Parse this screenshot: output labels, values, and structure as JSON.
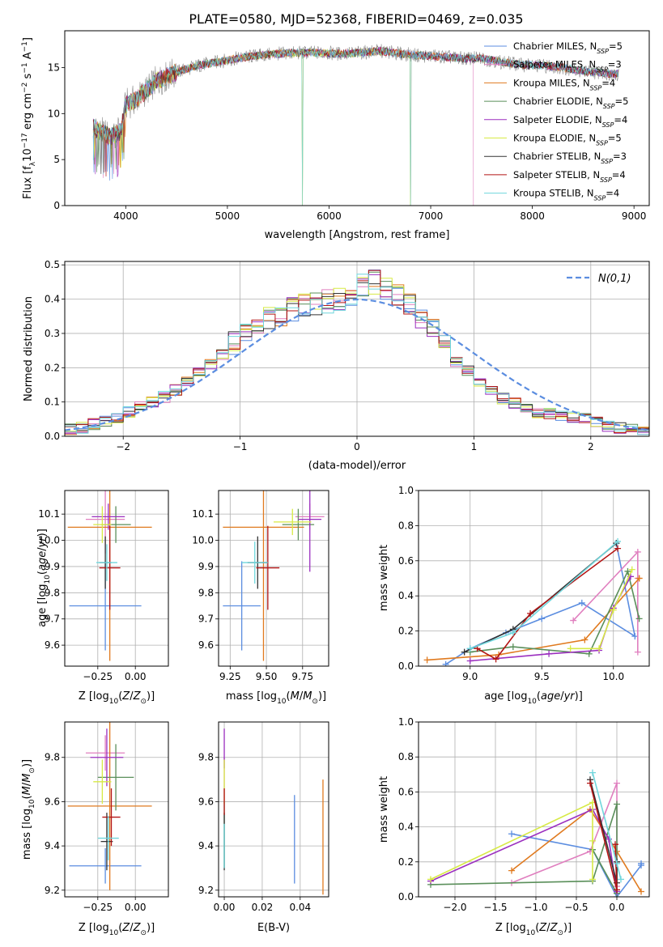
{
  "title": "PLATE=0580, MJD=52368, FIBERID=0469, z=0.035",
  "colors": {
    "Chabrier MILES": "#5b8de0",
    "Salpeter MILES": "#e07fbf",
    "Kroupa MILES": "#e07a1f",
    "Chabrier ELODIE": "#5a8f5a",
    "Salpeter ELODIE": "#9b2fbf",
    "Kroupa ELODIE": "#d7ea45",
    "Chabrier STELIB": "#333333",
    "Salpeter STELIB": "#b31414",
    "Kroupa STELIB": "#6fd6dc",
    "observed": "#808080"
  },
  "chart_data": [
    {
      "id": "spectrum",
      "type": "line",
      "xlabel": "wavelength [Angstrom, rest frame]",
      "ylabel": "Flux [f_λ10^-17 erg cm^-2 s^-1 A^-1]",
      "xlim": [
        3400,
        9150
      ],
      "ylim": [
        0,
        19
      ],
      "xticks": [
        4000,
        5000,
        6000,
        7000,
        8000,
        9000
      ],
      "yticks": [
        0,
        5,
        10,
        15
      ],
      "grid": false,
      "legend": "top-right",
      "legend_entries": [
        "Chabrier MILES, N_SSP=5",
        "Salpeter MILES, N_SSP=3",
        "Kroupa MILES, N_SSP=4",
        "Chabrier ELODIE, N_SSP=5",
        "Salpeter ELODIE, N_SSP=4",
        "Kroupa ELODIE, N_SSP=5",
        "Chabrier STELIB, N_SSP=3",
        "Salpeter STELIB, N_SSP=4",
        "Kroupa STELIB, N_SSP=4"
      ],
      "continuum": {
        "x": [
          3680,
          3750,
          3850,
          3950,
          4000,
          4100,
          4200,
          4300,
          4400,
          4500,
          4700,
          4900,
          5100,
          5300,
          5500,
          5700,
          5900,
          6100,
          6300,
          6500,
          6700,
          6900,
          7100,
          7300,
          7500,
          7700,
          7900,
          8100,
          8300,
          8500,
          8700,
          8850
        ],
        "y": [
          8.5,
          8,
          7.5,
          8,
          11,
          11.5,
          12.5,
          13.5,
          14,
          14.5,
          15.2,
          15.6,
          16,
          16.3,
          16.5,
          16.6,
          16.6,
          16.5,
          16.6,
          16.8,
          16.5,
          16.3,
          16.2,
          16,
          16,
          15.6,
          15.3,
          15.2,
          15,
          14.6,
          14.4,
          14.3
        ]
      },
      "model_cutoffs": {
        "Salpeter MILES": 7420,
        "Kroupa ELODIE": 6800
      },
      "sky_line_drops": [
        5740,
        6800
      ]
    },
    {
      "id": "residuals",
      "type": "histogram",
      "xlabel": "(data-model)/error",
      "ylabel": "Normed distribution",
      "xlim": [
        -2.5,
        2.5
      ],
      "ylim": [
        0,
        0.51
      ],
      "xticks": [
        -2,
        -1,
        0,
        1,
        2
      ],
      "yticks": [
        0.0,
        0.1,
        0.2,
        0.3,
        0.4,
        0.5
      ],
      "grid": true,
      "legend": "top-right",
      "reference_label": "N(0,1)",
      "base": [
        0.02,
        0.025,
        0.035,
        0.045,
        0.055,
        0.07,
        0.085,
        0.1,
        0.115,
        0.135,
        0.16,
        0.185,
        0.21,
        0.24,
        0.27,
        0.3,
        0.32,
        0.34,
        0.355,
        0.37,
        0.38,
        0.39,
        0.395,
        0.4,
        0.405,
        0.44,
        0.45,
        0.43,
        0.41,
        0.38,
        0.35,
        0.31,
        0.26,
        0.22,
        0.19,
        0.16,
        0.13,
        0.11,
        0.095,
        0.08,
        0.07,
        0.065,
        0.06,
        0.055,
        0.05,
        0.04,
        0.03,
        0.025,
        0.02,
        0.015
      ],
      "bin_width": 0.1
    },
    {
      "id": "age-vs-Z",
      "type": "errorbar",
      "xlabel": "Z [log10(Z/Z_sun)]",
      "ylabel": "age [log10(age/yr)]",
      "xlim": [
        -0.47,
        0.22
      ],
      "ylim": [
        9.52,
        10.19
      ],
      "xticks": [
        -0.25,
        0.0
      ],
      "xticklabels": [
        "−0.25",
        "0.00"
      ],
      "yticks": [
        9.6,
        9.7,
        9.8,
        9.9,
        10.0,
        10.1
      ],
      "grid": true,
      "points": [
        {
          "s": "Chabrier MILES",
          "x": -0.2,
          "xerr": 0.24,
          "y": 9.75,
          "yerr": 0.17
        },
        {
          "s": "Salpeter MILES",
          "x": -0.2,
          "xerr": 0.13,
          "y": 10.08,
          "yerr": 0.13
        },
        {
          "s": "Kroupa MILES",
          "x": -0.17,
          "xerr": 0.28,
          "y": 10.05,
          "yerr": 0.51
        },
        {
          "s": "Chabrier ELODIE",
          "x": -0.13,
          "xerr": 0.1,
          "y": 10.06,
          "yerr": 0.07
        },
        {
          "s": "Salpeter ELODIE",
          "x": -0.18,
          "xerr": 0.11,
          "y": 10.09,
          "yerr": 0.05
        },
        {
          "s": "Kroupa ELODIE",
          "x": -0.22,
          "xerr": 0.06,
          "y": 10.06,
          "yerr": 0.07
        },
        {
          "s": "Chabrier STELIB",
          "x": -0.2,
          "xerr": 0.04,
          "y": 9.915,
          "yerr": 0.1
        },
        {
          "s": "Salpeter STELIB",
          "x": -0.17,
          "xerr": 0.07,
          "y": 9.895,
          "yerr": 0.16
        },
        {
          "s": "Kroupa STELIB",
          "x": -0.19,
          "xerr": 0.07,
          "y": 9.915,
          "yerr": 0.07
        }
      ]
    },
    {
      "id": "age-vs-mass",
      "type": "errorbar",
      "xlabel": "mass [log10(M/M_sun)]",
      "ylabel": "",
      "xlim": [
        9.17,
        9.93
      ],
      "ylim": [
        9.52,
        10.19
      ],
      "xticks": [
        9.25,
        9.5,
        9.75
      ],
      "xticklabels": [
        "9.25",
        "9.50",
        "9.75"
      ],
      "yticks": [
        9.6,
        9.7,
        9.8,
        9.9,
        10.0,
        10.1
      ],
      "grid": true,
      "points": [
        {
          "s": "Chabrier MILES",
          "x": 9.33,
          "xerr": 0.13,
          "y": 9.75,
          "yerr": 0.17
        },
        {
          "s": "Salpeter MILES",
          "x": 9.8,
          "xerr": 0.1,
          "y": 10.09,
          "yerr": 0.05
        },
        {
          "s": "Kroupa MILES",
          "x": 9.48,
          "xerr": 0.28,
          "y": 10.05,
          "yerr": 0.51
        },
        {
          "s": "Chabrier ELODIE",
          "x": 9.72,
          "xerr": 0.11,
          "y": 10.06,
          "yerr": 0.06
        },
        {
          "s": "Salpeter ELODIE",
          "x": 9.8,
          "xerr": 0.08,
          "y": 10.08,
          "yerr": 0.2
        },
        {
          "s": "Kroupa ELODIE",
          "x": 9.68,
          "xerr": 0.13,
          "y": 10.07,
          "yerr": 0.05
        },
        {
          "s": "Chabrier STELIB",
          "x": 9.44,
          "xerr": 0.07,
          "y": 9.915,
          "yerr": 0.1
        },
        {
          "s": "Salpeter STELIB",
          "x": 9.51,
          "xerr": 0.08,
          "y": 9.895,
          "yerr": 0.16
        },
        {
          "s": "Kroupa STELIB",
          "x": 9.42,
          "xerr": 0.09,
          "y": 9.915,
          "yerr": 0.08
        }
      ]
    },
    {
      "id": "mass-weight-vs-age",
      "type": "line",
      "xlabel": "age [log10(age/yr)]",
      "ylabel": "mass weight",
      "xlim": [
        8.64,
        10.25
      ],
      "ylim": [
        0,
        1
      ],
      "xticks": [
        9.0,
        9.5,
        10.0
      ],
      "yticks": [
        0.0,
        0.2,
        0.4,
        0.6,
        0.8,
        1.0
      ],
      "grid": true,
      "series": [
        {
          "s": "Chabrier MILES",
          "x": [
            8.83,
            9.0,
            9.25,
            9.5,
            9.78,
            10.15,
            10.02
          ],
          "y": [
            0.01,
            0.1,
            0.19,
            0.27,
            0.36,
            0.17,
            0.7
          ]
        },
        {
          "s": "Salpeter MILES",
          "x": [
            9.72,
            10.17,
            10.17,
            10.17
          ],
          "y": [
            0.26,
            0.65,
            0.08,
            0.5
          ]
        },
        {
          "s": "Kroupa MILES",
          "x": [
            8.7,
            9.2,
            9.8,
            10.18,
            10.18
          ],
          "y": [
            0.035,
            0.065,
            0.15,
            0.5,
            0.5
          ]
        },
        {
          "s": "Chabrier ELODIE",
          "x": [
            9.0,
            9.3,
            9.83,
            10.1,
            10.18
          ],
          "y": [
            0.08,
            0.11,
            0.07,
            0.54,
            0.27
          ]
        },
        {
          "s": "Salpeter ELODIE",
          "x": [
            9.0,
            9.55,
            9.9,
            10.0,
            10.12
          ],
          "y": [
            0.03,
            0.07,
            0.09,
            0.33,
            0.51
          ]
        },
        {
          "s": "Kroupa ELODIE",
          "x": [
            9.7,
            9.9,
            10.0,
            10.13
          ],
          "y": [
            0.1,
            0.1,
            0.32,
            0.55
          ]
        },
        {
          "s": "Chabrier STELIB",
          "x": [
            8.96,
            9.3,
            10.02
          ],
          "y": [
            0.08,
            0.21,
            0.7
          ]
        },
        {
          "s": "Salpeter STELIB",
          "x": [
            9.05,
            9.18,
            9.42,
            10.03
          ],
          "y": [
            0.1,
            0.04,
            0.3,
            0.67
          ]
        },
        {
          "s": "Kroupa STELIB",
          "x": [
            9.0,
            9.3,
            10.03
          ],
          "y": [
            0.1,
            0.19,
            0.71
          ]
        }
      ]
    },
    {
      "id": "mass-vs-Z",
      "type": "errorbar",
      "xlabel": "Z [log10(Z/Z_sun)]",
      "ylabel": "mass [log10(M/M_sun)]",
      "xlim": [
        -0.47,
        0.22
      ],
      "ylim": [
        9.17,
        9.96
      ],
      "xticks": [
        -0.25,
        0.0
      ],
      "xticklabels": [
        "−0.25",
        "0.00"
      ],
      "yticks": [
        9.2,
        9.4,
        9.6,
        9.8
      ],
      "grid": true,
      "points": [
        {
          "s": "Chabrier MILES",
          "x": -0.2,
          "xerr": 0.24,
          "y": 9.31,
          "yerr": 0.08
        },
        {
          "s": "Salpeter MILES",
          "x": -0.2,
          "xerr": 0.13,
          "y": 9.82,
          "yerr": 0.08
        },
        {
          "s": "Kroupa MILES",
          "x": -0.17,
          "xerr": 0.28,
          "y": 9.58,
          "yerr": 0.38
        },
        {
          "s": "Chabrier ELODIE",
          "x": -0.13,
          "xerr": 0.12,
          "y": 9.71,
          "yerr": 0.15
        },
        {
          "s": "Salpeter ELODIE",
          "x": -0.19,
          "xerr": 0.11,
          "y": 9.8,
          "yerr": 0.13
        },
        {
          "s": "Kroupa ELODIE",
          "x": -0.22,
          "xerr": 0.06,
          "y": 9.69,
          "yerr": 0.1
        },
        {
          "s": "Chabrier STELIB",
          "x": -0.19,
          "xerr": 0.04,
          "y": 9.42,
          "yerr": 0.13
        },
        {
          "s": "Salpeter STELIB",
          "x": -0.16,
          "xerr": 0.06,
          "y": 9.53,
          "yerr": 0.13
        },
        {
          "s": "Kroupa STELIB",
          "x": -0.18,
          "xerr": 0.07,
          "y": 9.435,
          "yerr": 0.1
        }
      ]
    },
    {
      "id": "mass-vs-EBV",
      "type": "errorbar",
      "xlabel": "E(B-V)",
      "ylabel": "",
      "xlim": [
        -0.003,
        0.055
      ],
      "ylim": [
        9.17,
        9.96
      ],
      "xticks": [
        0.0,
        0.02,
        0.04
      ],
      "xticklabels": [
        "0.00",
        "0.02",
        "0.04"
      ],
      "yticks": [
        9.2,
        9.4,
        9.6,
        9.8
      ],
      "grid": true,
      "points": [
        {
          "s": "Chabrier MILES",
          "x": 0.037,
          "xerr": 0,
          "y": 9.43,
          "yerr": 0.2
        },
        {
          "s": "Salpeter MILES",
          "x": 0.0,
          "xerr": 0,
          "y": 9.7,
          "yerr": 0.1
        },
        {
          "s": "Kroupa MILES",
          "x": 0.052,
          "xerr": 0,
          "y": 9.44,
          "yerr": 0.26
        },
        {
          "s": "Chabrier ELODIE",
          "x": 0.0,
          "xerr": 0,
          "y": 9.45,
          "yerr": 0.15
        },
        {
          "s": "Salpeter ELODIE",
          "x": 0.0,
          "xerr": 0,
          "y": 9.84,
          "yerr": 0.09
        },
        {
          "s": "Kroupa ELODIE",
          "x": 0.0,
          "xerr": 0,
          "y": 9.69,
          "yerr": 0.1
        },
        {
          "s": "Chabrier STELIB",
          "x": 0.0,
          "xerr": 0,
          "y": 9.42,
          "yerr": 0.13
        },
        {
          "s": "Salpeter STELIB",
          "x": 0.0,
          "xerr": 0,
          "y": 9.6,
          "yerr": 0.06
        },
        {
          "s": "Kroupa STELIB",
          "x": 0.0,
          "xerr": 0,
          "y": 9.4,
          "yerr": 0.1
        }
      ]
    },
    {
      "id": "mass-weight-vs-Z",
      "type": "line",
      "xlabel": "Z [log10(Z/Z_sun)]",
      "ylabel": "mass weight",
      "xlim": [
        -2.45,
        0.4
      ],
      "ylim": [
        0,
        1
      ],
      "xticks": [
        -2.0,
        -1.5,
        -1.0,
        -0.5,
        0.0
      ],
      "xticklabels": [
        "−2.0",
        "−1.5",
        "−1.0",
        "−0.5",
        "0.0"
      ],
      "yticks": [
        0.0,
        0.2,
        0.4,
        0.6,
        0.8,
        1.0
      ],
      "grid": true,
      "series": [
        {
          "s": "Chabrier MILES",
          "x": [
            -1.3,
            -0.3,
            0.0,
            0.3,
            0.3
          ],
          "y": [
            0.36,
            0.27,
            0.0,
            0.18,
            0.19
          ]
        },
        {
          "s": "Salpeter MILES",
          "x": [
            -1.3,
            -0.33,
            0.0,
            0.0
          ],
          "y": [
            0.08,
            0.26,
            0.65,
            0.06
          ]
        },
        {
          "s": "Kroupa MILES",
          "x": [
            -1.3,
            -0.33,
            0.0,
            0.3
          ],
          "y": [
            0.15,
            0.5,
            0.26,
            0.03
          ]
        },
        {
          "s": "Chabrier ELODIE",
          "x": [
            -2.3,
            -0.3,
            0.0,
            0.0,
            -0.3
          ],
          "y": [
            0.07,
            0.09,
            0.53,
            0.02,
            0.27
          ]
        },
        {
          "s": "Salpeter ELODIE",
          "x": [
            -2.3,
            -0.3,
            -0.1,
            0.0
          ],
          "y": [
            0.09,
            0.5,
            0.33,
            0.03
          ]
        },
        {
          "s": "Kroupa ELODIE",
          "x": [
            -2.3,
            -0.3,
            -0.3,
            -0.3
          ],
          "y": [
            0.1,
            0.54,
            0.1,
            0.32
          ]
        },
        {
          "s": "Chabrier STELIB",
          "x": [
            -0.33,
            0.0,
            0.0
          ],
          "y": [
            0.67,
            0.08,
            0.2
          ]
        },
        {
          "s": "Salpeter STELIB",
          "x": [
            -0.33,
            0.0,
            -0.02
          ],
          "y": [
            0.65,
            0.04,
            0.3
          ]
        },
        {
          "s": "Kroupa STELIB",
          "x": [
            -0.3,
            0.0,
            0.05
          ],
          "y": [
            0.71,
            0.19,
            0.1
          ]
        }
      ]
    }
  ]
}
